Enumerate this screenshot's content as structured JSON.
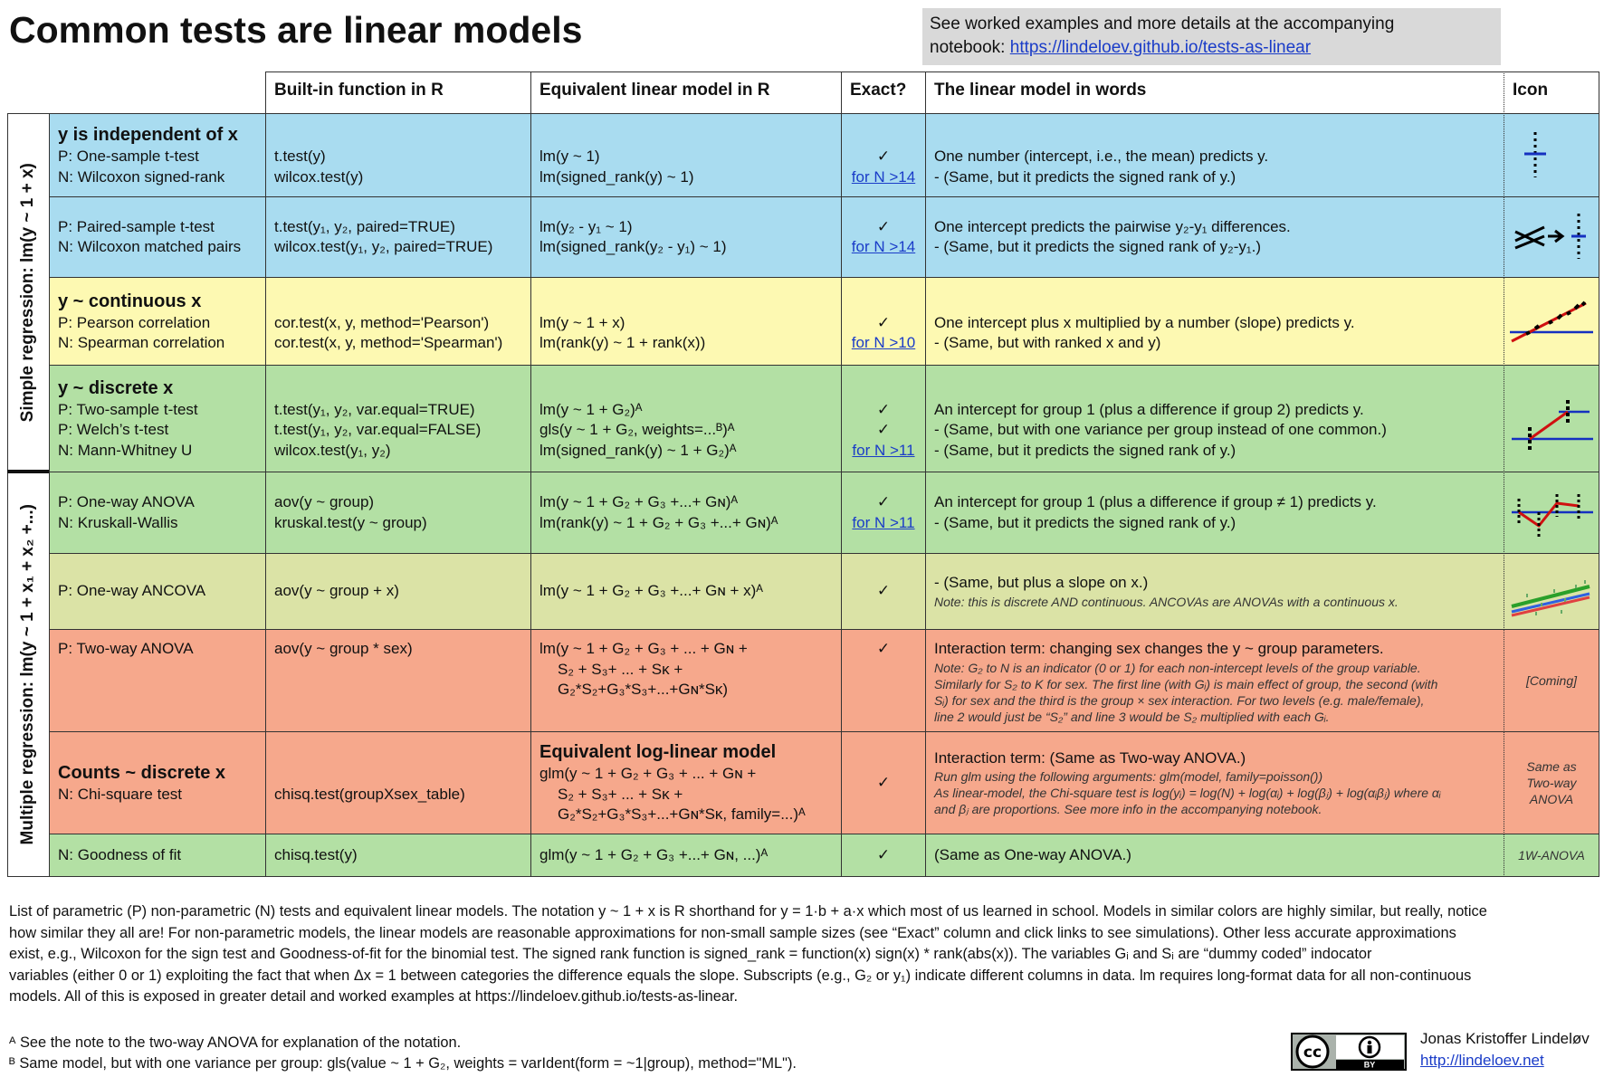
{
  "header": {
    "title": "Common tests are linear models",
    "note_lines": [
      "See worked examples and more details at the accompanying",
      "notebook: "
    ],
    "note_link": "https://lindeloev.github.io/tests-as-linear"
  },
  "table": {
    "columns": [
      "Built-in function in R",
      "Equivalent linear model in R",
      "Exact?",
      "The linear model in words",
      "Icon"
    ],
    "groups": [
      "Simple regression: lm(y ~ 1 + x)",
      "Multiple regression: lm(y ~ 1 + x₁ + x₂ +...)"
    ],
    "rows": [
      {
        "heading": "y is independent of x",
        "tests": [
          "P: One-sample t-test",
          "N: Wilcoxon signed-rank"
        ],
        "functions": [
          "t.test(y)",
          "wilcox.test(y)"
        ],
        "models": [
          "lm(y ~ 1)",
          "lm(signed_rank(y) ~ 1)"
        ],
        "exact": [
          "✓"
        ],
        "exact_link": "for N >14",
        "words": [
          "One number (intercept, i.e., the mean) predicts y.",
          "- (Same, but it predicts the signed rank of y.)"
        ]
      },
      {
        "tests": [
          "P: Paired-sample t-test",
          "N: Wilcoxon matched pairs"
        ],
        "functions": [
          "t.test(y₁, y₂, paired=TRUE)",
          "wilcox.test(y₁, y₂, paired=TRUE)"
        ],
        "models": [
          "lm(y₂ - y₁ ~ 1)",
          "lm(signed_rank(y₂ - y₁) ~ 1)"
        ],
        "exact": [
          "✓"
        ],
        "exact_link": "for N >14",
        "words": [
          "One intercept predicts the pairwise y₂-y₁ differences.",
          "- (Same, but it predicts the signed rank of y₂-y₁.)"
        ]
      },
      {
        "heading": "y ~ continuous x",
        "tests": [
          "P: Pearson correlation",
          "N: Spearman correlation"
        ],
        "functions": [
          "cor.test(x, y, method='Pearson')",
          "cor.test(x, y, method='Spearman')"
        ],
        "models": [
          "lm(y ~ 1 + x)",
          "lm(rank(y) ~ 1 + rank(x))"
        ],
        "exact": [
          "✓"
        ],
        "exact_link": "for N >10",
        "words": [
          "One intercept plus x multiplied by a number (slope) predicts y.",
          "- (Same, but with ranked x and y)"
        ]
      },
      {
        "heading": "y ~ discrete x",
        "tests": [
          "P: Two-sample t-test",
          "P: Welch’s t-test",
          "N: Mann-Whitney U"
        ],
        "functions": [
          "t.test(y₁, y₂, var.equal=TRUE)",
          "t.test(y₁, y₂, var.equal=FALSE)",
          "wilcox.test(y₁, y₂)"
        ],
        "models": [
          "lm(y ~ 1 + G₂)ᴬ",
          "gls(y ~ 1 + G₂, weights=...ᴮ)ᴬ",
          "lm(signed_rank(y) ~ 1 + G₂)ᴬ"
        ],
        "exact": [
          "✓",
          "✓"
        ],
        "exact_link": "for N >11",
        "words": [
          "An intercept for group 1 (plus a difference if group 2) predicts y.",
          "- (Same, but with one variance per group instead of one common.)",
          "- (Same, but it predicts the signed rank of y.)"
        ]
      },
      {
        "tests": [
          "P: One-way ANOVA",
          "N: Kruskall-Wallis"
        ],
        "functions": [
          "aov(y ~ group)",
          "kruskal.test(y ~ group)"
        ],
        "models": [
          "lm(y ~ 1 + G₂ + G₃ +...+ Gɴ)ᴬ",
          "lm(rank(y) ~ 1 + G₂ + G₃ +...+ Gɴ)ᴬ"
        ],
        "exact": [
          "✓"
        ],
        "exact_link": "for N >11",
        "words": [
          "An intercept for group 1 (plus a difference if group ≠ 1) predicts y.",
          "- (Same, but it predicts the signed rank of y.)"
        ]
      },
      {
        "tests": [
          "P: One-way ANCOVA"
        ],
        "functions": [
          "aov(y ~ group + x)"
        ],
        "models": [
          "lm(y ~ 1 + G₂ + G₃ +...+ Gɴ + x)ᴬ"
        ],
        "exact": [
          "✓"
        ],
        "words": [
          "- (Same, but plus a slope on x.)"
        ],
        "notes": [
          "Note: this is discrete AND continuous. ANCOVAs are ANOVAs with a continuous x."
        ]
      },
      {
        "tests": [
          "P: Two-way ANOVA"
        ],
        "functions": [
          "aov(y ~ group * sex)"
        ],
        "models": [
          "lm(y ~ 1 + G₂ + G₃ + ... + Gɴ +",
          "S₂ + S₃+ ... + Sᴋ +",
          "G₂*S₂+G₃*S₃+...+Gɴ*Sᴋ)"
        ],
        "exact": [
          "✓"
        ],
        "words": [
          "Interaction term: changing sex changes the y ~ group parameters."
        ],
        "notes": [
          "Note: G₂ to N is an indicator (0 or 1) for each non-intercept levels of the group variable.",
          "Similarly for S₂ to K for sex. The first line (with Gᵢ) is main effect of group, the second (with",
          "Sᵢ) for sex and the third is the group × sex interaction. For two levels (e.g. male/female),",
          "line 2 would just be “S₂” and line 3 would be S₂ multiplied with each Gᵢ."
        ],
        "icon": [
          "[Coming]"
        ]
      },
      {
        "heading": "Counts ~ discrete x",
        "tests": [
          "N: Chi-square test"
        ],
        "functions": [
          "chisq.test(groupXsex_table)"
        ],
        "models_heading": "Equivalent log-linear model",
        "models": [
          "glm(y ~ 1 + G₂ + G₃ + ... + Gɴ +",
          "S₂ + S₃+ ... + Sᴋ +",
          "G₂*S₂+G₃*S₃+...+Gɴ*Sᴋ, family=...)ᴬ"
        ],
        "exact": [
          "✓"
        ],
        "words": [
          "Interaction term: (Same as Two-way ANOVA.)"
        ],
        "notes": [
          "Run glm using the following arguments: glm(model, family=poisson())",
          "As linear-model, the Chi-square test is log(yᵢ) = log(N) + log(αᵢ) + log(βⱼ) + log(αᵢβⱼ) where αᵢ",
          "and βⱼ are proportions. See more info in the accompanying notebook."
        ],
        "icon": [
          "Same as",
          "Two-way",
          "ANOVA"
        ]
      },
      {
        "tests": [
          "N: Goodness of fit"
        ],
        "functions": [
          "chisq.test(y)"
        ],
        "models": [
          "glm(y ~ 1 + G₂ + G₃ +...+ Gɴ, ...)ᴬ"
        ],
        "exact": [
          "✓"
        ],
        "words": [
          "(Same as One-way ANOVA.)"
        ],
        "icon": [
          "1W-ANOVA"
        ]
      }
    ]
  },
  "footer": {
    "paragraph": [
      "List of parametric (P) non-parametric (N) tests and equivalent linear models. The notation y ~ 1 + x is R shorthand for y = 1·b + a·x which most of us learned in school. Models in similar colors are highly similar, but really, notice",
      "how similar they all are! For non-parametric models, the linear models are reasonable approximations for non-small sample sizes (see “Exact” column and click links to see simulations). Other less accurate approximations",
      "exist, e.g., Wilcoxon for the sign test and Goodness-of-fit for the binomial test. The signed rank function is signed_rank = function(x) sign(x) * rank(abs(x)). The variables Gᵢ and Sᵢ are “dummy coded” indocator",
      "variables (either 0 or 1) exploiting the fact that when Δx = 1 between categories the difference equals the slope. Subscripts (e.g., G₂ or y₁) indicate different columns in data. lm requires long-format data for all non-continuous",
      "models. All of this is exposed in greater detail and worked examples at https://lindeloev.github.io/tests-as-linear."
    ],
    "footnotes": [
      "ᴬ See the note to the two-way ANOVA for explanation of the notation.",
      "ᴮ Same model, but with one variance per group: gls(value ~ 1 + G₂, weights = varIdent(form = ~1|group), method=\"ML\")."
    ],
    "license": "BY",
    "author": "Jonas Kristoffer Lindeløv",
    "author_link": "http://lindeloev.net"
  }
}
